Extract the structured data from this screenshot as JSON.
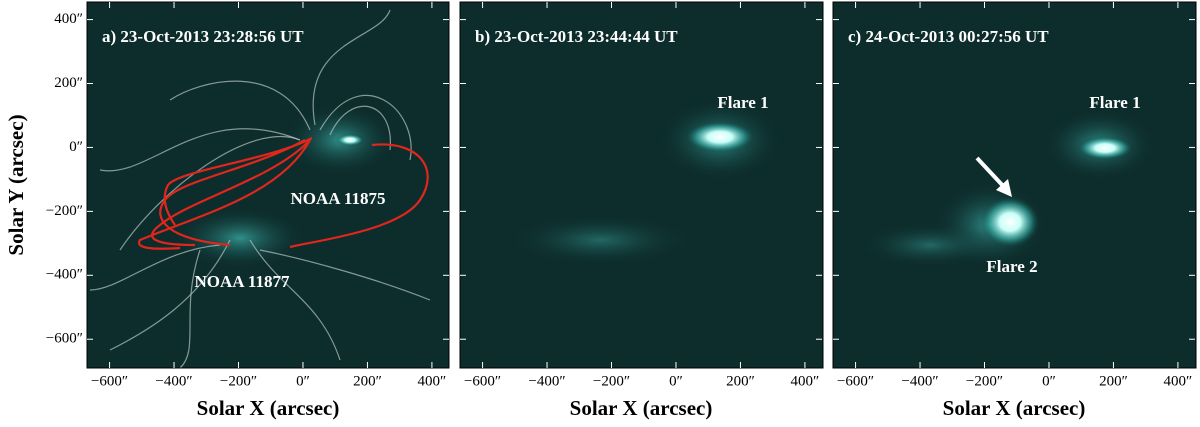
{
  "figure": {
    "ylabel": "Solar Y (arcsec)",
    "ylim": [
      -690,
      455
    ],
    "xlim": [
      -670,
      453
    ],
    "yticks": [
      {
        "value": 400,
        "label": "400″"
      },
      {
        "value": 200,
        "label": "200″"
      },
      {
        "value": 0,
        "label": "0″"
      },
      {
        "value": -200,
        "label": "−200″"
      },
      {
        "value": -400,
        "label": "−400″"
      },
      {
        "value": -600,
        "label": "−600″"
      }
    ],
    "panels": [
      {
        "title": "a) 23-Oct-2013  23:28:56 UT",
        "xlabel": "Solar X (arcsec)",
        "xticks": [
          {
            "value": -600,
            "label": "−600″"
          },
          {
            "value": -400,
            "label": "−400″"
          },
          {
            "value": -200,
            "label": "−200″"
          },
          {
            "value": 0,
            "label": "0″"
          },
          {
            "value": 200,
            "label": "200″"
          },
          {
            "value": 400,
            "label": "400″"
          }
        ],
        "annotations": [
          "NOAA 11875",
          "NOAA 11877"
        ]
      },
      {
        "title": "b) 23-Oct-2013  23:44:44 UT",
        "xlabel": "Solar X (arcsec)",
        "xticks": [
          {
            "value": -600,
            "label": "−600″"
          },
          {
            "value": -400,
            "label": "−400″"
          },
          {
            "value": -200,
            "label": "−200″"
          },
          {
            "value": 0,
            "label": "0″"
          },
          {
            "value": 200,
            "label": "200″"
          },
          {
            "value": 400,
            "label": "400″"
          }
        ],
        "annotations": [
          "Flare 1"
        ]
      },
      {
        "title": "c) 24-Oct-2013  00:27:56 UT",
        "xlabel": "Solar X (arcsec)",
        "xticks": [
          {
            "value": -600,
            "label": "−600″"
          },
          {
            "value": -400,
            "label": "−400″"
          },
          {
            "value": -200,
            "label": "−200″"
          },
          {
            "value": 0,
            "label": "0″"
          },
          {
            "value": 200,
            "label": "200″"
          },
          {
            "value": 400,
            "label": "400″"
          }
        ],
        "annotations": [
          "Flare 1",
          "Flare 2"
        ]
      }
    ]
  }
}
